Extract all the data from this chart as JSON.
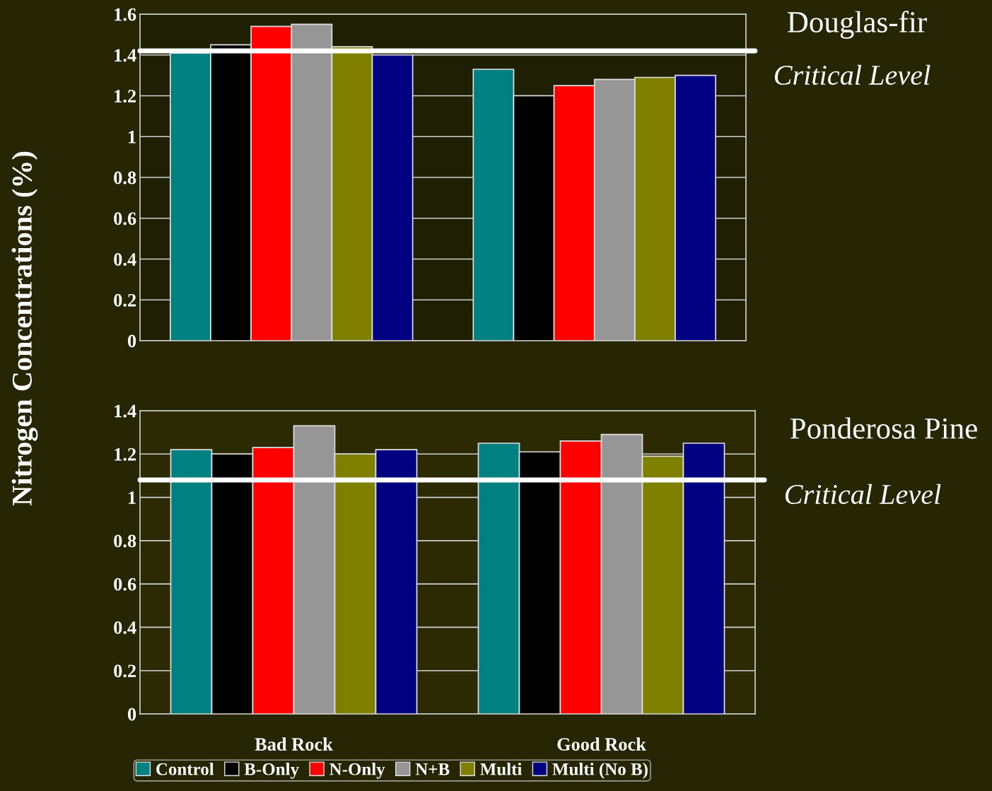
{
  "chart_data": [
    {
      "type": "bar",
      "annotations": [
        "Douglas-fir"
      ],
      "ylabel": "Nitrogen Concentrations (%)",
      "categories": [
        null,
        null
      ],
      "tick_labels": "y",
      "series": [
        {
          "color": "#008080",
          "values": [
            1.41,
            1.33
          ]
        },
        {
          "color": "#000000",
          "values": [
            1.45,
            1.2
          ]
        },
        {
          "color": "#ff0000",
          "values": [
            1.54,
            1.25
          ]
        },
        {
          "color": "#969696",
          "values": [
            1.55,
            1.28
          ]
        },
        {
          "color": "#808000",
          "values": [
            1.44,
            1.29
          ]
        },
        {
          "color": "#000080",
          "values": [
            1.4,
            1.3
          ]
        }
      ],
      "ylim": [
        0,
        1.6
      ],
      "yticks": [
        0,
        0.2,
        0.4,
        0.6,
        0.8,
        1,
        1.2,
        1.4,
        1.6
      ],
      "grid": "y",
      "ref_lines": [
        {
          "axis": "y",
          "value": 1.42,
          "label": "Critical Level",
          "color": "#ffffff"
        }
      ]
    },
    {
      "type": "bar",
      "annotations": [
        "Ponderosa Pine"
      ],
      "categories": [
        "Bad Rock",
        "Good Rock"
      ],
      "series": [
        {
          "name": "Control",
          "color": "#008080",
          "values": [
            1.22,
            1.25
          ]
        },
        {
          "name": "B-Only",
          "color": "#000000",
          "values": [
            1.2,
            1.21
          ]
        },
        {
          "name": "N-Only",
          "color": "#ff0000",
          "values": [
            1.23,
            1.26
          ]
        },
        {
          "name": "N+B",
          "color": "#969696",
          "values": [
            1.33,
            1.29
          ]
        },
        {
          "name": "Multi",
          "color": "#808000",
          "values": [
            1.2,
            1.19
          ]
        },
        {
          "name": "Multi (No B)",
          "color": "#000080",
          "values": [
            1.22,
            1.25
          ]
        }
      ],
      "ylim": [
        0,
        1.4
      ],
      "yticks": [
        0,
        0.2,
        0.4,
        0.6,
        0.8,
        1,
        1.2,
        1.4
      ],
      "grid": "y",
      "legend": "bottom",
      "ref_lines": [
        {
          "axis": "y",
          "value": 1.08,
          "label": "Critical Level",
          "color": "#ffffff"
        }
      ]
    }
  ]
}
